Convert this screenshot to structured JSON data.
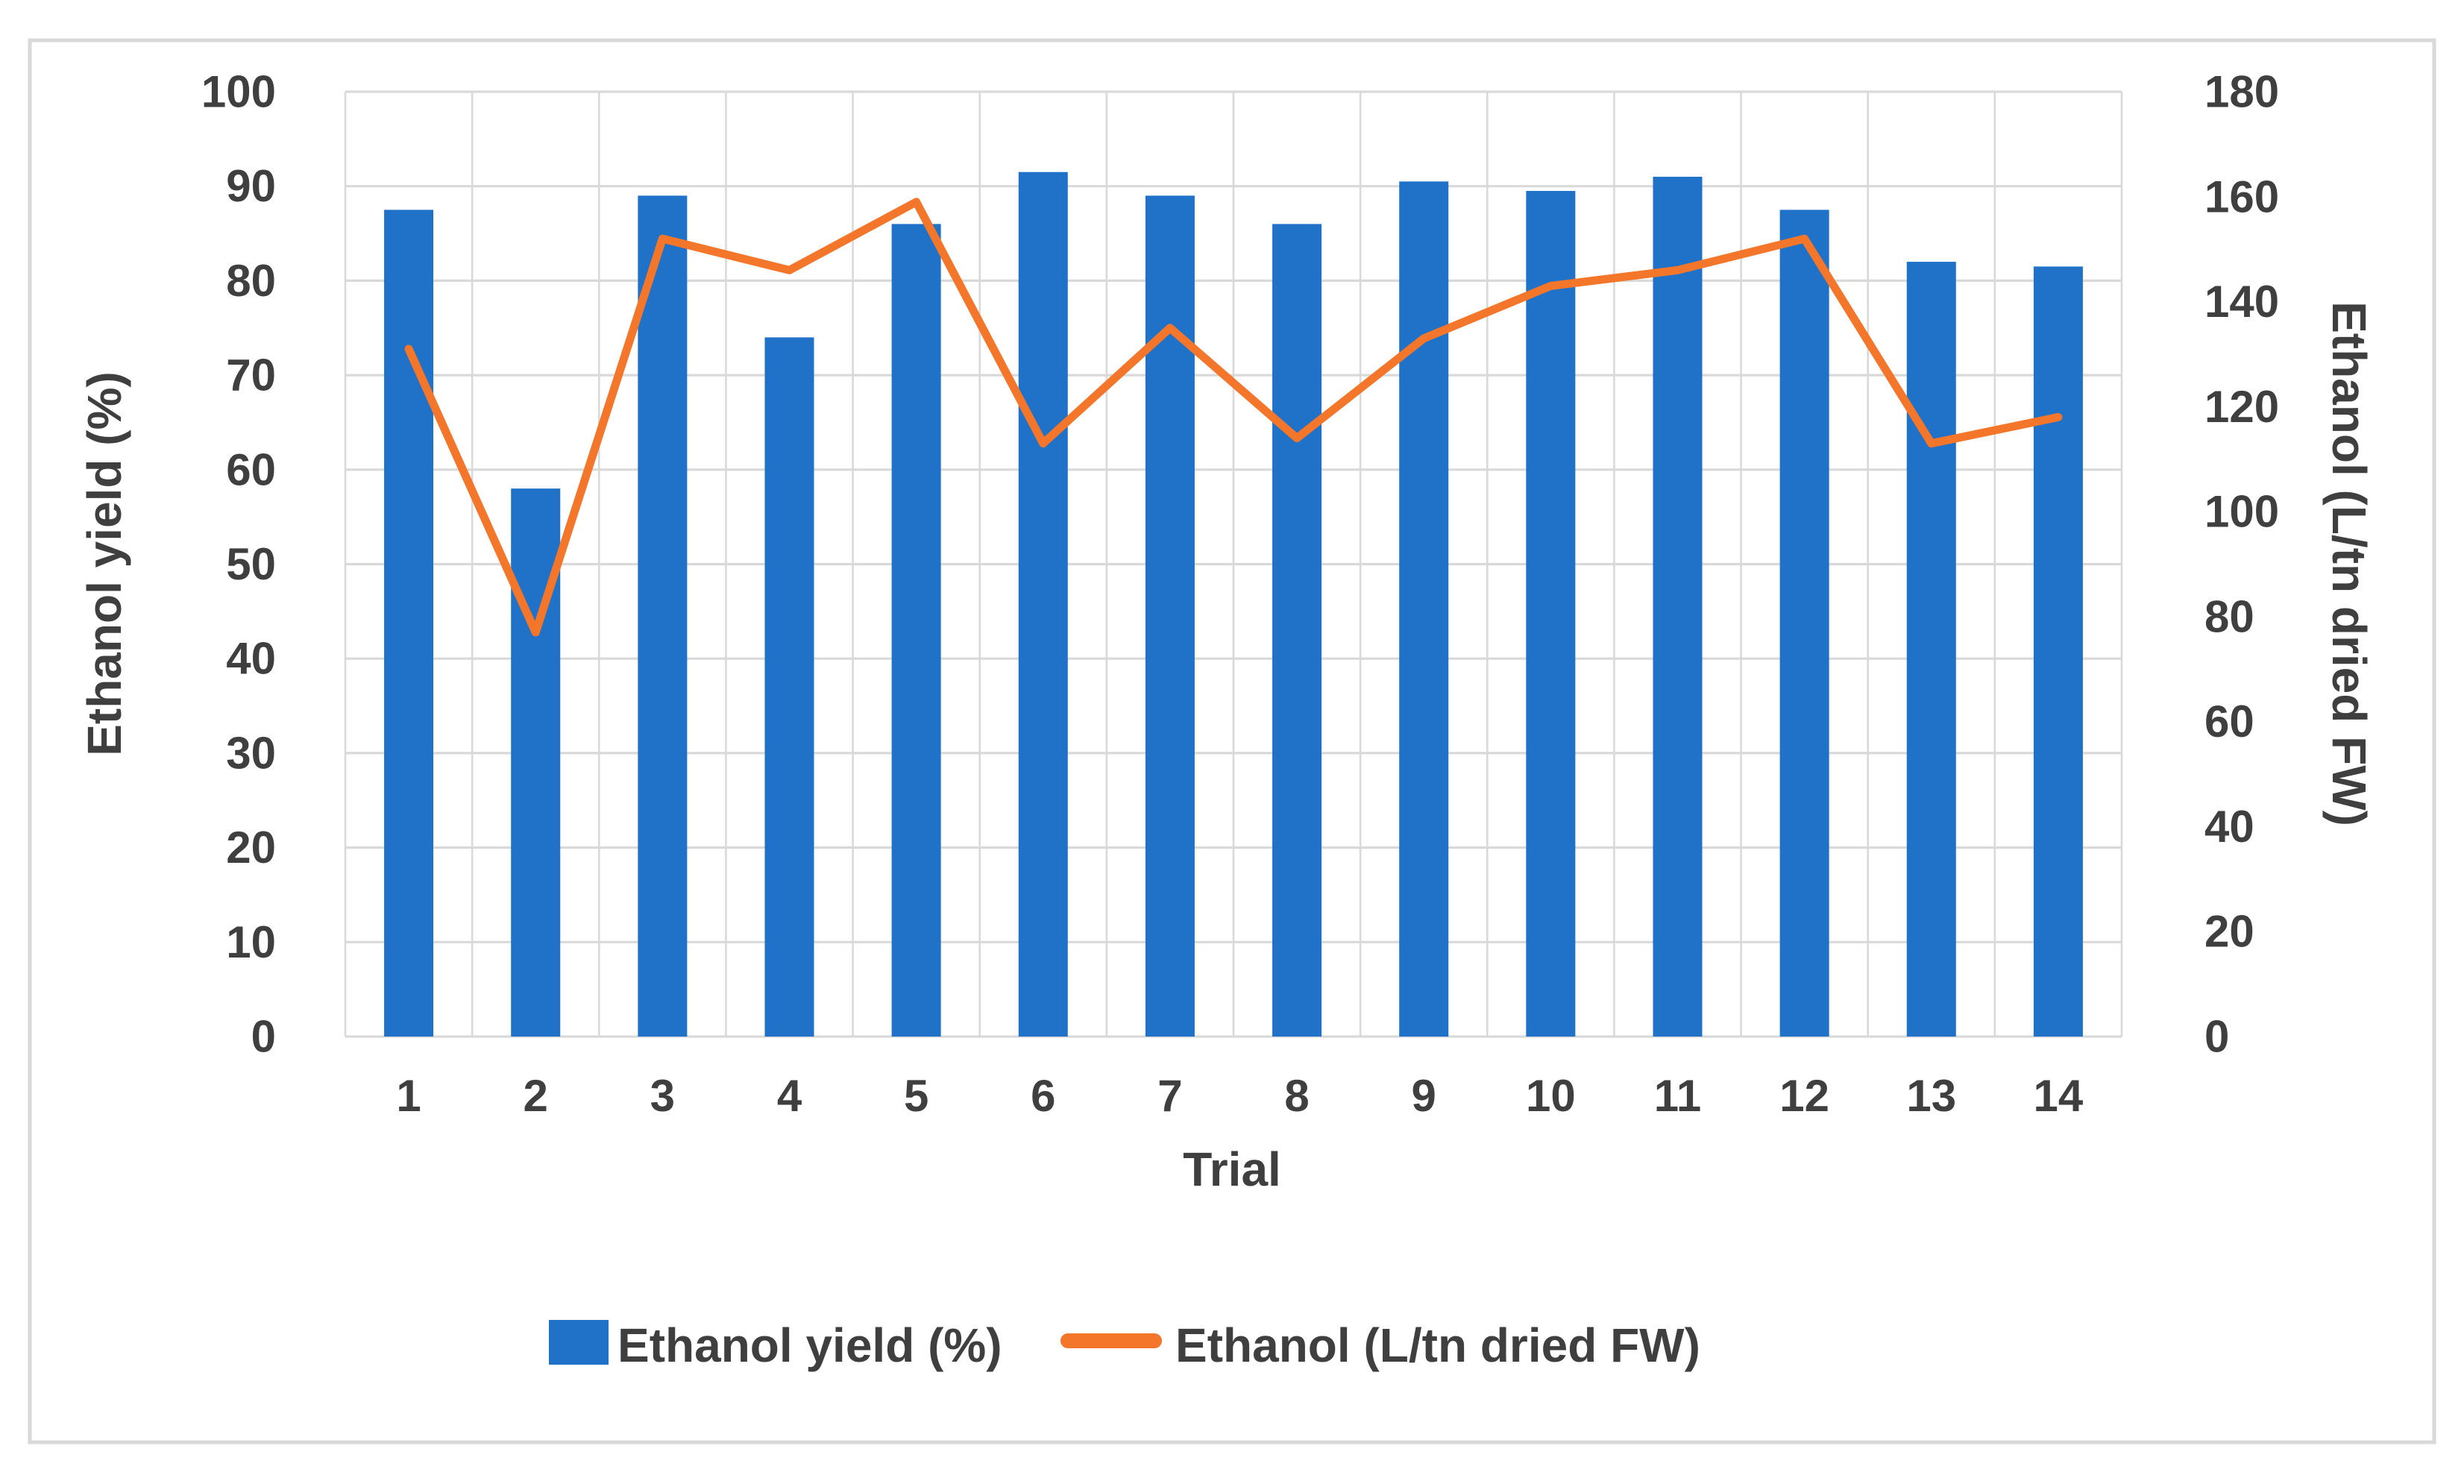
{
  "chart_data": {
    "type": "combo",
    "title": "",
    "categories": [
      "1",
      "2",
      "3",
      "4",
      "5",
      "6",
      "7",
      "8",
      "9",
      "10",
      "11",
      "12",
      "13",
      "14"
    ],
    "series": [
      {
        "name": "Ethanol yield (%)",
        "type": "bar",
        "axis": "left",
        "color": "#1f72c8",
        "values": [
          87.5,
          58,
          89,
          74,
          86,
          91.5,
          89,
          86,
          90.5,
          89.5,
          91,
          87.5,
          82,
          81.5
        ]
      },
      {
        "name": "Ethanol (L/tn dried FW)",
        "type": "line",
        "axis": "right",
        "color": "#f4762a",
        "values": [
          131,
          77,
          152,
          146,
          159,
          113,
          135,
          114,
          133,
          143,
          146,
          152,
          113,
          118
        ]
      }
    ],
    "xlabel": "Trial",
    "ylabel_left": "Ethanol yield (%)",
    "ylabel_right": "Ethanol (L/tn dried FW)",
    "ylim_left": [
      0,
      100
    ],
    "ytick_step_left": 10,
    "ylim_right": [
      0,
      180
    ],
    "ytick_step_right": 20,
    "grid": true,
    "vertical_grid": true,
    "legend_position": "bottom"
  },
  "colors": {
    "bar_fill": "#1f72c8",
    "line_stroke": "#f4762a",
    "grid": "#d9d9d9",
    "text": "#3f3f3f",
    "frame_border": "#d9d9d9",
    "background": "#ffffff"
  }
}
